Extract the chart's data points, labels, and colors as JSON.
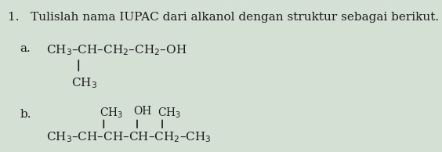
{
  "background_color": "#d4e0d4",
  "title_text": "1.   Tulislah nama IUPAC dari alkanol dengan struktur sebagai berikut.",
  "label_a": "a.",
  "label_b": "b.",
  "main_chain_a": "CH₃–CH–CH₂–CH₂–OH",
  "branch_a_vert_label": "CH₃",
  "branch_b_top": "CH₃  OH  CH₃",
  "main_chain_b": "CH₃–CH–CH–CH–CH₂–CH₃",
  "font_size_main": 11,
  "font_size_title": 11,
  "text_color": "#1a1a1a"
}
